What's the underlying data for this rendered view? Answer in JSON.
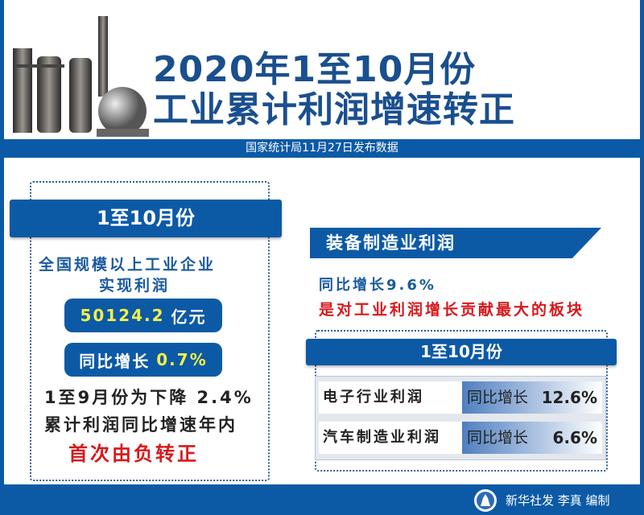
{
  "header": {
    "title_line1": "2020年1至10月份",
    "title_line2": "工业累计利润增速转正",
    "caption": "国家统计局11月27日发布数据"
  },
  "left": {
    "period": "1至10月份",
    "desc_line1": "全国规模以上工业企业",
    "desc_line2": "实现利润",
    "profit_value": "50124.2",
    "profit_unit": "亿元",
    "growth_label": "同比增长",
    "growth_value": "0.7%",
    "note_line1": "1至9月份为下降 2.4%",
    "note_line2": "累计利润同比增速年内",
    "note_line3": "首次由负转正"
  },
  "right": {
    "banner": "装备制造业利润",
    "growth": "同比增长9.6%",
    "highlight": "是对工业利润增长贡献最大的板块",
    "period": "1至10月份",
    "rows": [
      {
        "label": "电子行业利润",
        "growth_label": "同比增长",
        "value": "12.6%"
      },
      {
        "label": "汽车制造业利润",
        "growth_label": "同比增长",
        "value": "6.6%"
      }
    ]
  },
  "footer": {
    "credit": "新华社发 李真 编制",
    "logo": "xinhua-logo"
  },
  "colors": {
    "brand_blue": "#0c5aa6",
    "title_blue": "#1a4f8f",
    "accent_yellow": "#f2ef4a",
    "accent_red": "#d7191c"
  }
}
